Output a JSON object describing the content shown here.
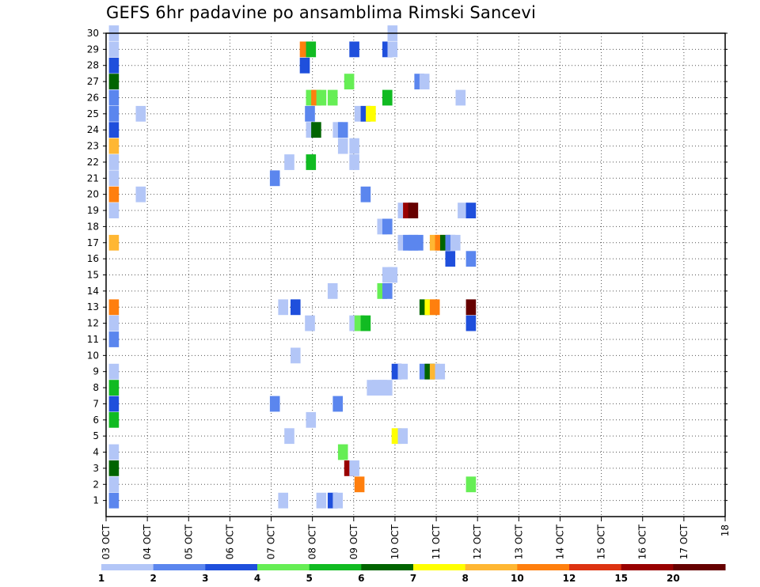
{
  "chart_data": {
    "type": "heatmap",
    "title": "GEFS 6hr padavine po ansamblima Rimski Sancevi",
    "x_tick_labels": [
      "03 OCT",
      "04 OCT",
      "05 OCT",
      "06 OCT",
      "07 OCT",
      "08 OCT",
      "09 OCT",
      "10 OCT",
      "11 OCT",
      "12 OCT",
      "13 OCT",
      "14 OCT",
      "15 OCT",
      "16 OCT",
      "17 OCT",
      "18"
    ],
    "xlim": [
      0,
      60
    ],
    "ylim": [
      0,
      30
    ],
    "y_ticks": [
      1,
      2,
      3,
      4,
      5,
      6,
      7,
      8,
      9,
      10,
      11,
      12,
      13,
      14,
      15,
      16,
      17,
      18,
      19,
      20,
      21,
      22,
      23,
      24,
      25,
      26,
      27,
      28,
      29,
      30
    ],
    "grid": true,
    "color_scale": {
      "colors": [
        "#b3c6f7",
        "#5b86ee",
        "#1f4fdc",
        "#66ee55",
        "#11bb22",
        "#006400",
        "#ffff00",
        "#ffb733",
        "#ff7f0e",
        "#dd3311",
        "#990000",
        "#660000"
      ],
      "tick_labels": [
        "1",
        "2",
        "3",
        "4",
        "5",
        "6",
        "7",
        "8",
        "10",
        "12",
        "15",
        "20"
      ]
    },
    "cells": [
      [
        0.2,
        1,
        1
      ],
      [
        0.2,
        2,
        0
      ],
      [
        0.2,
        3,
        5
      ],
      [
        0.2,
        4,
        0
      ],
      [
        0.2,
        6,
        4
      ],
      [
        0.2,
        7,
        2
      ],
      [
        0.2,
        8,
        4
      ],
      [
        0.2,
        9,
        0
      ],
      [
        0.2,
        11,
        1
      ],
      [
        0.2,
        12,
        0
      ],
      [
        0.2,
        13,
        8
      ],
      [
        0.2,
        17,
        7
      ],
      [
        0.2,
        19,
        0
      ],
      [
        0.2,
        20,
        8
      ],
      [
        0.2,
        21,
        0
      ],
      [
        0.2,
        22,
        0
      ],
      [
        0.2,
        23,
        7
      ],
      [
        0.2,
        24,
        2
      ],
      [
        0.2,
        25,
        1
      ],
      [
        0.2,
        26,
        1
      ],
      [
        0.2,
        27,
        5
      ],
      [
        0.2,
        28,
        2
      ],
      [
        0.2,
        29,
        0
      ],
      [
        0.2,
        30,
        0
      ],
      [
        2.8,
        20,
        0
      ],
      [
        2.8,
        25,
        0
      ],
      [
        15.8,
        7,
        1
      ],
      [
        15.8,
        21,
        1
      ],
      [
        16.6,
        1,
        0
      ],
      [
        16.6,
        13,
        0
      ],
      [
        17.2,
        5,
        0
      ],
      [
        17.2,
        22,
        0
      ],
      [
        17.8,
        10,
        0
      ],
      [
        17.8,
        13,
        2
      ],
      [
        18.7,
        28,
        2
      ],
      [
        18.7,
        29,
        8
      ],
      [
        19.2,
        12,
        0
      ],
      [
        19.2,
        25,
        1
      ],
      [
        19.3,
        29,
        4
      ],
      [
        19.3,
        24,
        0
      ],
      [
        19.3,
        6,
        0
      ],
      [
        19.3,
        26,
        3
      ],
      [
        19.3,
        22,
        4
      ],
      [
        19.8,
        24,
        5
      ],
      [
        19.8,
        26,
        8
      ],
      [
        20.3,
        26,
        3
      ],
      [
        20.3,
        1,
        0
      ],
      [
        21.4,
        1,
        2
      ],
      [
        21.4,
        14,
        0
      ],
      [
        21.4,
        26,
        3
      ],
      [
        21.9,
        7,
        1
      ],
      [
        21.9,
        24,
        0
      ],
      [
        21.9,
        1,
        0
      ],
      [
        22.4,
        24,
        1
      ],
      [
        22.4,
        23,
        0
      ],
      [
        22.4,
        4,
        3
      ],
      [
        23.0,
        3,
        10
      ],
      [
        23.0,
        27,
        3
      ],
      [
        23.5,
        3,
        0
      ],
      [
        23.5,
        12,
        0
      ],
      [
        23.5,
        22,
        0
      ],
      [
        23.5,
        23,
        0
      ],
      [
        23.5,
        29,
        2
      ],
      [
        24.0,
        2,
        8
      ],
      [
        24.0,
        12,
        3
      ],
      [
        24.0,
        25,
        0
      ],
      [
        24.6,
        12,
        4
      ],
      [
        24.6,
        20,
        1
      ],
      [
        24.6,
        25,
        2
      ],
      [
        25.1,
        25,
        6
      ],
      [
        25.2,
        8,
        0
      ],
      [
        25.7,
        8,
        0
      ],
      [
        26.2,
        8,
        0
      ],
      [
        26.7,
        8,
        0
      ],
      [
        26.2,
        14,
        3
      ],
      [
        26.2,
        18,
        0
      ],
      [
        26.7,
        14,
        1
      ],
      [
        26.7,
        18,
        1
      ],
      [
        26.7,
        15,
        0
      ],
      [
        26.7,
        26,
        4
      ],
      [
        26.7,
        29,
        2
      ],
      [
        27.2,
        15,
        0
      ],
      [
        27.2,
        30,
        0
      ],
      [
        27.2,
        29,
        0
      ],
      [
        27.6,
        9,
        2
      ],
      [
        27.6,
        5,
        6
      ],
      [
        28.2,
        5,
        0
      ],
      [
        28.2,
        9,
        0
      ],
      [
        28.2,
        17,
        0
      ],
      [
        28.2,
        19,
        0
      ],
      [
        28.7,
        17,
        1
      ],
      [
        28.7,
        19,
        10
      ],
      [
        29.2,
        17,
        1
      ],
      [
        29.2,
        19,
        11
      ],
      [
        29.7,
        17,
        1
      ],
      [
        29.8,
        27,
        1
      ],
      [
        30.3,
        9,
        1
      ],
      [
        30.3,
        13,
        5
      ],
      [
        30.3,
        27,
        0
      ],
      [
        30.8,
        9,
        5
      ],
      [
        30.8,
        13,
        6
      ],
      [
        31.3,
        9,
        7
      ],
      [
        31.3,
        13,
        8
      ],
      [
        31.3,
        17,
        7
      ],
      [
        31.8,
        9,
        0
      ],
      [
        31.8,
        17,
        8
      ],
      [
        32.3,
        17,
        5
      ],
      [
        32.8,
        16,
        2
      ],
      [
        32.8,
        17,
        1
      ],
      [
        33.3,
        17,
        0
      ],
      [
        33.8,
        26,
        0
      ],
      [
        34.0,
        19,
        0
      ],
      [
        34.8,
        12,
        2
      ],
      [
        34.8,
        13,
        11
      ],
      [
        34.8,
        19,
        2
      ],
      [
        34.8,
        2,
        3
      ],
      [
        34.8,
        16,
        1
      ]
    ],
    "cell_format": "[x_position_in_6hr_steps, member (1-30), color_bin_index]"
  }
}
